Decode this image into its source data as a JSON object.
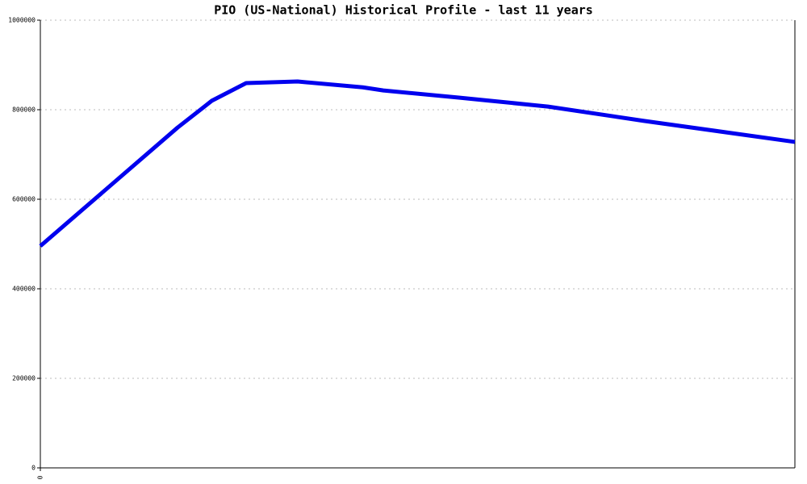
{
  "chart_data": {
    "type": "line",
    "title": "PIO (US-National) Historical Profile - last 11 years",
    "x": [
      0,
      2,
      2.5,
      3,
      3.75,
      4.7,
      5,
      6.1,
      7.4,
      8.8,
      11
    ],
    "series": [
      {
        "name": "PIO",
        "color": "#0000ee",
        "values": [
          495500,
          760000,
          820000,
          859500,
          863000,
          850000,
          843000,
          827000,
          807000,
          775000,
          728000
        ]
      }
    ],
    "xlim": [
      0,
      11
    ],
    "xticks": [
      0
    ],
    "ylim": [
      0,
      1000000
    ],
    "yticks": [
      0,
      200000,
      400000,
      600000,
      800000,
      1000000
    ],
    "grid": true
  }
}
